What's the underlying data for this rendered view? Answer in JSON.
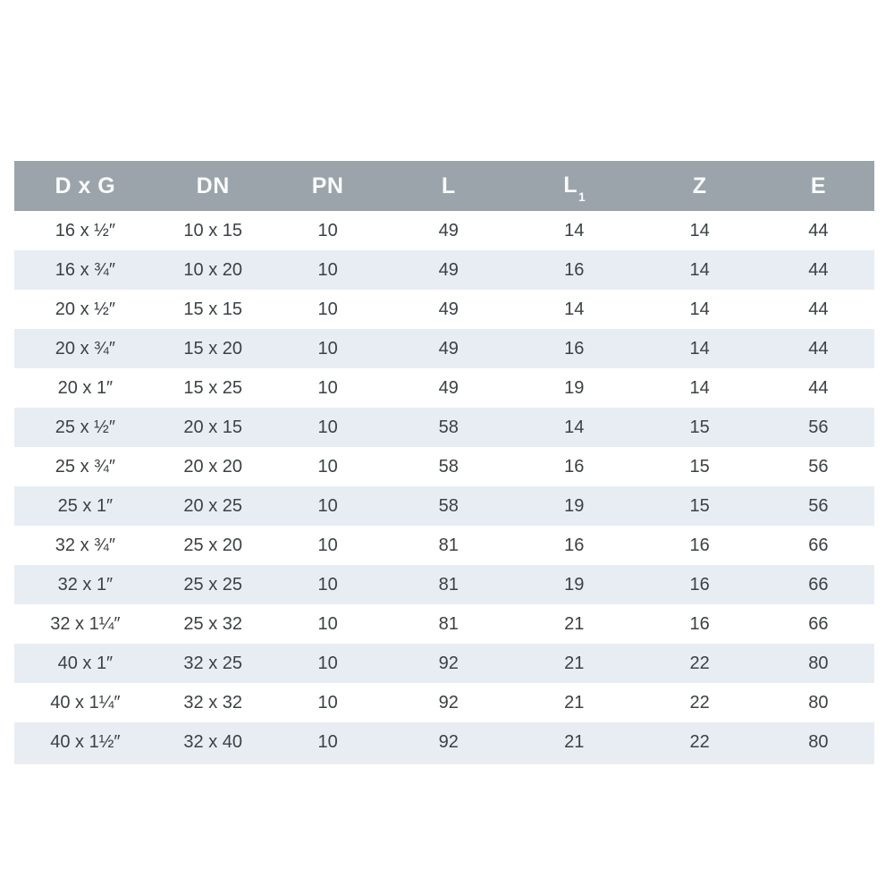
{
  "table": {
    "header_bg": "#9ba4ab",
    "header_text_color": "#fafbfc",
    "row_alt_bg": "#e7edf3",
    "text_color": "#3b4144",
    "columns": [
      {
        "label": "D x G",
        "key": "dxg"
      },
      {
        "label": "DN",
        "key": "dn"
      },
      {
        "label": "PN",
        "key": "pn"
      },
      {
        "label": "L",
        "key": "l"
      },
      {
        "label": "L",
        "sub": "1",
        "key": "l1"
      },
      {
        "label": "Z",
        "key": "z"
      },
      {
        "label": "E",
        "key": "e"
      }
    ],
    "rows": [
      [
        "16 x ½″",
        "10 x 15",
        "10",
        "49",
        "14",
        "14",
        "44"
      ],
      [
        "16 x ¾″",
        "10 x 20",
        "10",
        "49",
        "16",
        "14",
        "44"
      ],
      [
        "20 x ½″",
        "15 x 15",
        "10",
        "49",
        "14",
        "14",
        "44"
      ],
      [
        "20 x ¾″",
        "15 x 20",
        "10",
        "49",
        "16",
        "14",
        "44"
      ],
      [
        "20 x 1″",
        "15 x 25",
        "10",
        "49",
        "19",
        "14",
        "44"
      ],
      [
        "25 x ½″",
        "20 x 15",
        "10",
        "58",
        "14",
        "15",
        "56"
      ],
      [
        "25 x ¾″",
        "20 x 20",
        "10",
        "58",
        "16",
        "15",
        "56"
      ],
      [
        "25 x 1″",
        "20 x 25",
        "10",
        "58",
        "19",
        "15",
        "56"
      ],
      [
        "32 x ¾″",
        "25 x 20",
        "10",
        "81",
        "16",
        "16",
        "66"
      ],
      [
        "32 x 1″",
        "25 x 25",
        "10",
        "81",
        "19",
        "16",
        "66"
      ],
      [
        "32 x 1¼″",
        "25 x 32",
        "10",
        "81",
        "21",
        "16",
        "66"
      ],
      [
        "40 x 1″",
        "32 x 25",
        "10",
        "92",
        "21",
        "22",
        "80"
      ],
      [
        "40 x 1¼″",
        "32 x 32",
        "10",
        "92",
        "21",
        "22",
        "80"
      ],
      [
        "40 x 1½″",
        "32 x 40",
        "10",
        "92",
        "21",
        "22",
        "80"
      ]
    ]
  }
}
